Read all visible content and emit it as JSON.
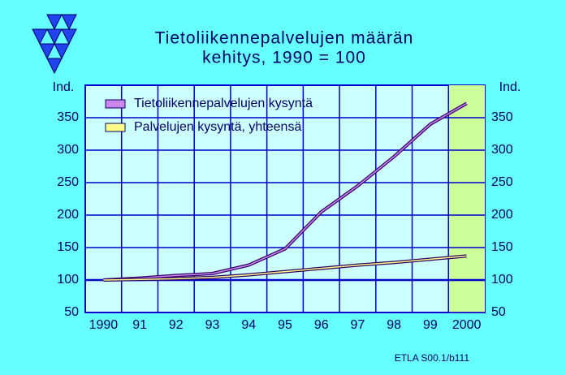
{
  "chart_data": {
    "type": "line",
    "title": "Tietoliikennepalvelujen  määrän",
    "subtitle": "kehitys,  1990 = 100",
    "y_label": "Ind.",
    "categories": [
      "1990",
      "91",
      "92",
      "93",
      "94",
      "95",
      "96",
      "97",
      "98",
      "99",
      "2000"
    ],
    "series": [
      {
        "name": "Tietoliikennepalvelujen kysyntä",
        "color": "#cc88ee",
        "values": [
          100,
          103,
          107,
          110,
          123,
          148,
          205,
          245,
          290,
          340,
          372
        ]
      },
      {
        "name": "Palvelujen kysyntä, yhteensä",
        "color": "#ffff88",
        "values": [
          100,
          101,
          102,
          104,
          108,
          113,
          118,
          123,
          127,
          132,
          137
        ]
      }
    ],
    "ylim": [
      50,
      400
    ],
    "yticks": [
      50,
      100,
      150,
      200,
      250,
      300,
      350
    ],
    "grid": true,
    "highlight_category": "2000",
    "highlight_color": "#ccff99",
    "source": "ETLA S00.1/b111"
  }
}
